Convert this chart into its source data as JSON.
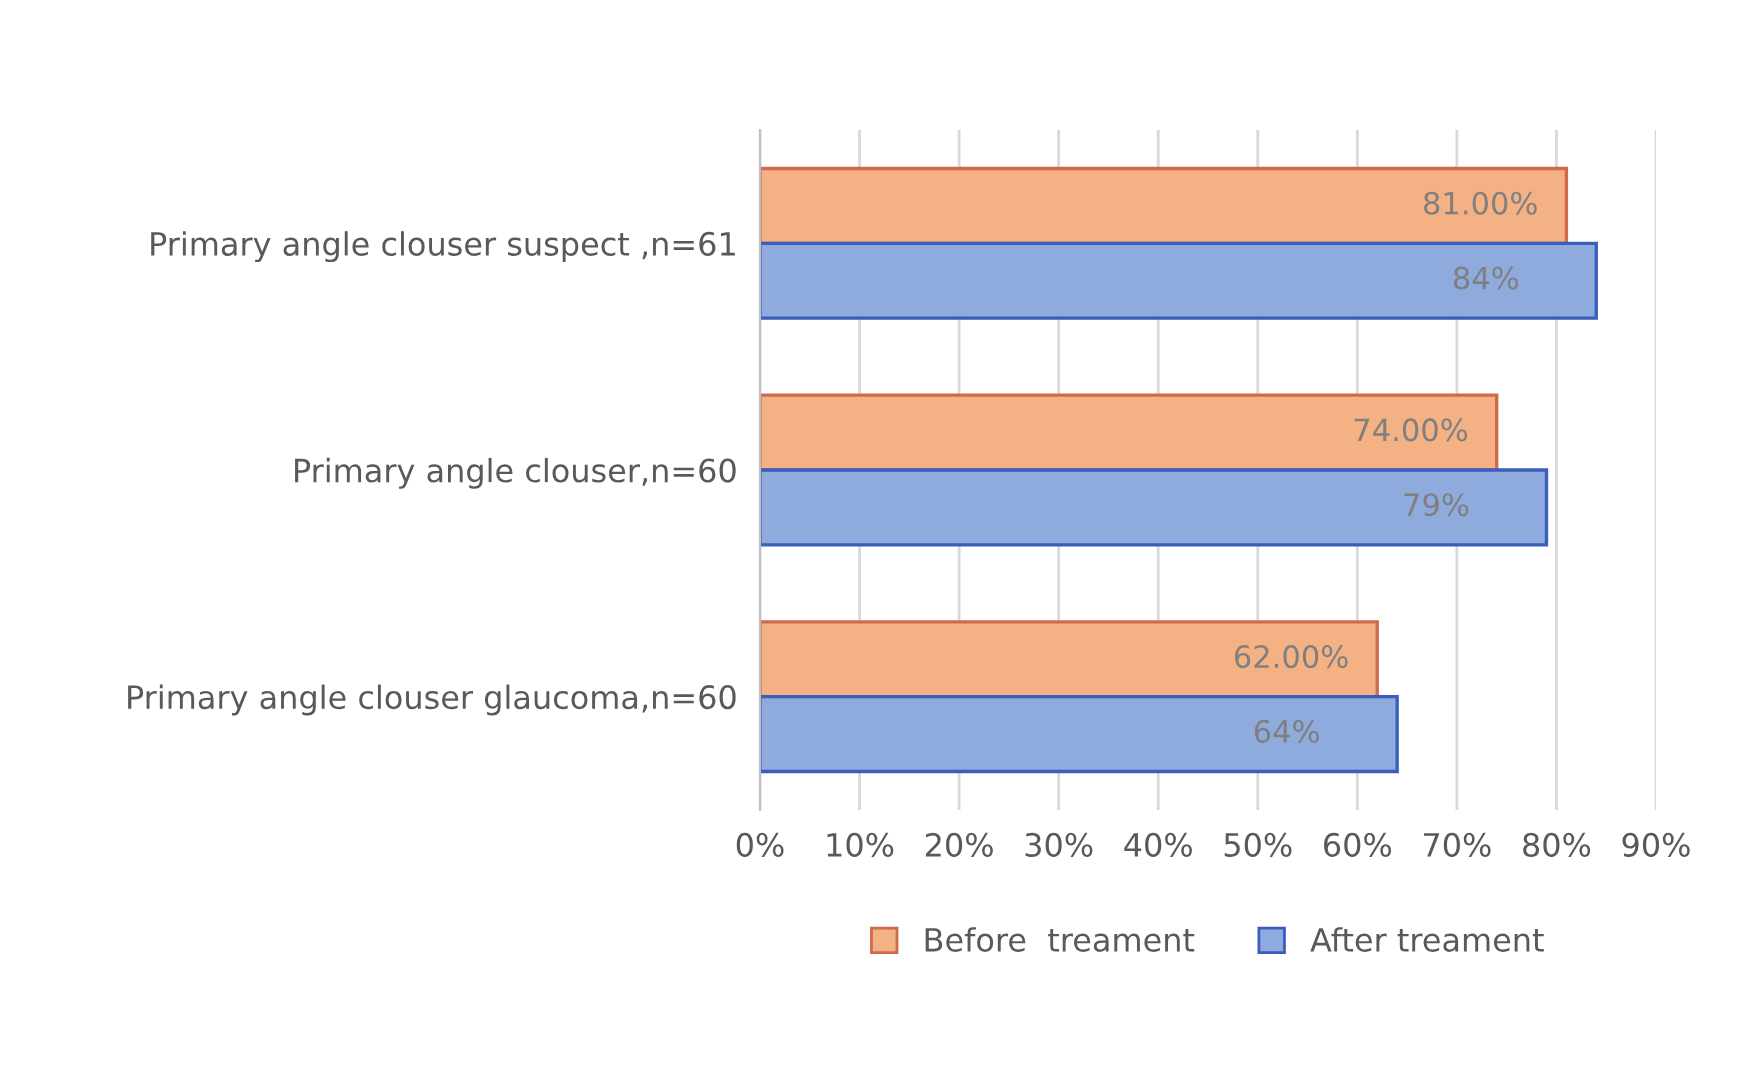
{
  "chart_data": {
    "type": "bar",
    "orientation": "horizontal",
    "categories": [
      "Primary angle clouser suspect ,n=61",
      "Primary angle clouser,n=60",
      "Primary angle clouser glaucoma,n=60"
    ],
    "series": [
      {
        "name": "Before  treament",
        "color": "#f4b183",
        "values": [
          81,
          74,
          62
        ],
        "value_labels": [
          "81.00%",
          "74.00%",
          "62.00%"
        ]
      },
      {
        "name": "After treament",
        "color": "#8faadc",
        "values": [
          84,
          79,
          64
        ],
        "value_labels": [
          "84%",
          "79%",
          "64%"
        ]
      }
    ],
    "xlim": [
      0,
      90
    ],
    "xticks": [
      {
        "value": 0,
        "label": "0%"
      },
      {
        "value": 10,
        "label": "10%"
      },
      {
        "value": 20,
        "label": "20%"
      },
      {
        "value": 30,
        "label": "30%"
      },
      {
        "value": 40,
        "label": "40%"
      },
      {
        "value": 50,
        "label": "50%"
      },
      {
        "value": 60,
        "label": "60%"
      },
      {
        "value": 70,
        "label": "70%"
      },
      {
        "value": 80,
        "label": "80%"
      },
      {
        "value": 90,
        "label": "90%"
      }
    ],
    "grid": "x",
    "legend": "bottom"
  }
}
